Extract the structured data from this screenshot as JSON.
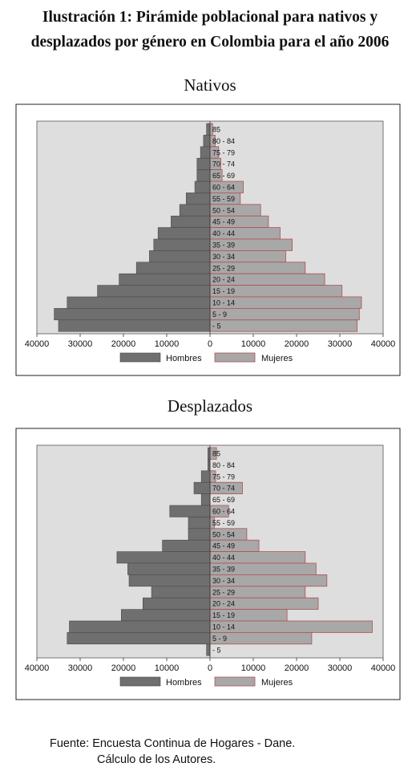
{
  "title_line1": "Ilustración 1: Pirámide poblacional para nativos y",
  "title_line2": "desplazados por género  en Colombia para el año 2006",
  "source_line1": "Fuente: Encuesta Continua de Hogares - Dane.",
  "source_line2": "Cálculo de los Autores.",
  "colors": {
    "hombres": "#6f6f6f",
    "mujeres": "#a8a8a8",
    "plot_bg": "#dedede",
    "mujeres_edge": "#b05050"
  },
  "chart_data": [
    {
      "type": "bar",
      "orientation": "horizontal",
      "title": "Nativos",
      "categories": [
        "85",
        "80 - 84",
        "75 - 79",
        "70 - 74",
        "65 - 69",
        "60 - 64",
        "55 - 59",
        "50 - 54",
        "45 - 49",
        "40 - 44",
        "35 - 39",
        "30 - 34",
        "25 - 29",
        "20 - 24",
        "15 - 19",
        "10 - 14",
        "5 - 9",
        "- 5"
      ],
      "series": [
        {
          "name": "Hombres",
          "values": [
            800,
            1500,
            2200,
            3000,
            3000,
            3500,
            5500,
            7000,
            9000,
            12000,
            13000,
            14000,
            17000,
            21000,
            26000,
            33000,
            36000,
            35000
          ]
        },
        {
          "name": "Mujeres",
          "values": [
            600,
            1200,
            2000,
            2500,
            2800,
            7700,
            7000,
            11700,
            13500,
            16200,
            19000,
            17500,
            22000,
            26500,
            30500,
            35000,
            34500,
            34000
          ]
        }
      ],
      "xticks": [
        "40000",
        "30000",
        "20000",
        "10000",
        "0",
        "10000",
        "20000",
        "30000",
        "40000"
      ],
      "xlim": [
        -40000,
        40000
      ],
      "legend": "bottom"
    },
    {
      "type": "bar",
      "orientation": "horizontal",
      "title": "Desplazados",
      "categories": [
        "85",
        "80 - 84",
        "75 - 79",
        "70 - 74",
        "65 - 69",
        "60 - 64",
        "55 - 59",
        "50 - 54",
        "45 - 49",
        "40 - 44",
        "35 - 39",
        "30 - 34",
        "25 - 29",
        "20 - 24",
        "15 - 19",
        "10 - 14",
        "5 - 9",
        "- 5"
      ],
      "series": [
        {
          "name": "Hombres",
          "values": [
            500,
            500,
            2000,
            3700,
            2000,
            9300,
            5000,
            5000,
            11000,
            21500,
            19000,
            18700,
            13500,
            15500,
            20500,
            32500,
            33000,
            800
          ]
        },
        {
          "name": "Mujeres",
          "values": [
            1500,
            0,
            1300,
            7500,
            0,
            4300,
            1000,
            8500,
            11300,
            22000,
            24500,
            27000,
            22000,
            25000,
            17800,
            37500,
            23500,
            0
          ]
        }
      ],
      "xticks": [
        "40000",
        "30000",
        "20000",
        "10000",
        "0",
        "10000",
        "20000",
        "30000",
        "40000"
      ],
      "xlim": [
        -40000,
        40000
      ],
      "legend": "bottom"
    }
  ]
}
